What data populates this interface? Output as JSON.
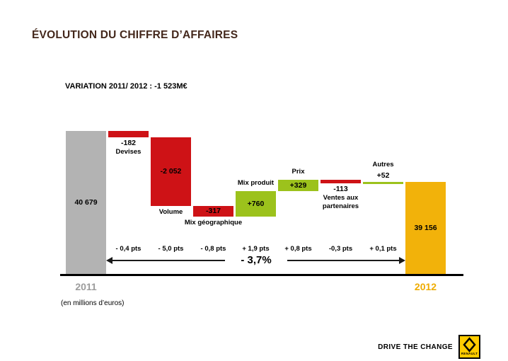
{
  "slide": {
    "title": "ÉVOLUTION DU CHIFFRE D’AFFAIRES",
    "subtitle": "VARIATION 2011/ 2012 : -1 523M€",
    "units_note": "(en millions d’euros)",
    "footer_tagline": "DRIVE THE CHANGE",
    "logo_text": "RENAULT"
  },
  "colors": {
    "negative": "#CE1216",
    "positive": "#9CC21C",
    "start_bar": "#B3B3B3",
    "end_bar": "#F2B20A",
    "start_label": "#9C9C9C",
    "end_label": "#EFAC00",
    "title": "#44281C",
    "logo_yellow": "#FFCC00"
  },
  "chart_data": {
    "type": "waterfall",
    "title": "VARIATION 2011/ 2012 : -1 523M€",
    "unit": "millions d’euros",
    "start": {
      "label": "2011",
      "value": 40679,
      "display": "40 679"
    },
    "end": {
      "label": "2012",
      "value": 39156,
      "display": "39 156"
    },
    "steps": [
      {
        "name": "Devises",
        "value": -182,
        "display": "-182",
        "pts": "- 0,4 pts",
        "value_pos": "below",
        "name_pos": "below"
      },
      {
        "name": "Volume",
        "value": -2052,
        "display": "-2 052",
        "pts": "- 5,0 pts",
        "value_pos": "inside",
        "name_pos": "below"
      },
      {
        "name": "Mix géographique",
        "value": -317,
        "display": "-317",
        "pts": "- 0,8 pts",
        "value_pos": "inside",
        "name_pos": "below"
      },
      {
        "name": "Mix produit",
        "value": 760,
        "display": "+760",
        "pts": "+ 1,9 pts",
        "value_pos": "inside",
        "name_pos": "above"
      },
      {
        "name": "Prix",
        "value": 329,
        "display": "+329",
        "pts": "+ 0,8 pts",
        "value_pos": "inside",
        "name_pos": "above"
      },
      {
        "name": "Ventes aux partenaires",
        "value": -113,
        "display": "-113",
        "pts": "-0,3 pts",
        "value_pos": "below",
        "name_pos": "below"
      },
      {
        "name": "Autres",
        "value": 52,
        "display": "+52",
        "pts": "+ 0,1 pts",
        "value_pos": "above",
        "name_pos": "above"
      }
    ],
    "total_change_label": "- 3,7%",
    "total_change_value": -1523
  }
}
